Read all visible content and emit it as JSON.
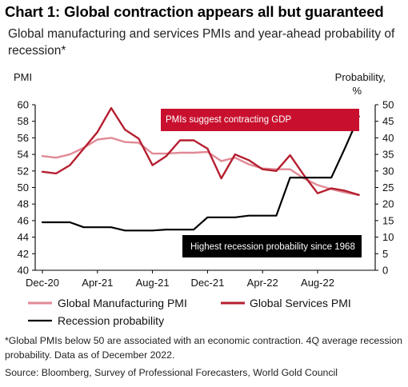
{
  "title": "Chart 1: Global contraction appears all but guaranteed",
  "subtitle": "Global manufacturing and services PMIs and year-ahead probability of recession*",
  "footnote": "*Global PMIs below 50 are associated with an economic contraction. 4Q average recession probability. Data as of December 2022.",
  "source": "Source: Bloomberg, Survey of Professional Forecasters, World Gold Council",
  "chart_data": {
    "type": "line",
    "left_axis": {
      "label": "PMI",
      "ylim": [
        40,
        60
      ],
      "ticks": [
        "40",
        "42",
        "44",
        "46",
        "48",
        "50",
        "52",
        "54",
        "56",
        "58",
        "60"
      ]
    },
    "right_axis": {
      "label_line1": "Probability,",
      "label_line2": "%",
      "ylim": [
        0,
        50
      ],
      "ticks": [
        "0",
        "5",
        "10",
        "15",
        "20",
        "25",
        "30",
        "35",
        "40",
        "45",
        "50"
      ]
    },
    "x_ticks": [
      "Dec-20",
      "Apr-21",
      "Aug-21",
      "Dec-21",
      "Apr-22",
      "Aug-22"
    ],
    "x_tick_index": [
      0,
      4,
      8,
      12,
      16,
      20
    ],
    "x_months": [
      "Dec-20",
      "Jan-21",
      "Feb-21",
      "Mar-21",
      "Apr-21",
      "May-21",
      "Jun-21",
      "Jul-21",
      "Aug-21",
      "Sep-21",
      "Oct-21",
      "Nov-21",
      "Dec-21",
      "Jan-22",
      "Feb-22",
      "Mar-22",
      "Apr-22",
      "May-22",
      "Jun-22",
      "Jul-22",
      "Aug-22",
      "Sep-22",
      "Oct-22",
      "Nov-22"
    ],
    "grid": false,
    "legend_placement": "bottom",
    "series": [
      {
        "name": "Global Manufacturing PMI",
        "axis": "left",
        "color": "#e08a96",
        "values": [
          53.8,
          53.6,
          54.0,
          54.8,
          55.8,
          56.0,
          55.5,
          55.4,
          54.1,
          54.1,
          54.2,
          54.2,
          54.3,
          53.2,
          53.6,
          52.8,
          52.3,
          52.2,
          52.2,
          51.1,
          50.3,
          49.8,
          49.4,
          49.1
        ]
      },
      {
        "name": "Global Services PMI",
        "axis": "left",
        "color": "#b51f30",
        "values": [
          51.9,
          51.7,
          52.7,
          54.7,
          56.7,
          59.6,
          57.0,
          55.9,
          52.7,
          53.8,
          55.7,
          55.7,
          54.7,
          51.1,
          54.0,
          53.3,
          52.2,
          52.0,
          53.9,
          51.5,
          49.3,
          49.9,
          49.6,
          49.1
        ]
      },
      {
        "name": "Recession probability",
        "axis": "right",
        "color": "#000000",
        "values": [
          14.5,
          14.5,
          14.5,
          13,
          13,
          13,
          12,
          12,
          12,
          12.3,
          12.3,
          12.3,
          16,
          16,
          16,
          16.5,
          16.5,
          16.5,
          28,
          28,
          28,
          28,
          37,
          46.5
        ]
      }
    ],
    "annotations": [
      {
        "text": "PMIs suggest contracting GDP",
        "color": "#c8102e"
      },
      {
        "text": "Highest recession probability since 1968",
        "color": "#000000"
      }
    ]
  }
}
